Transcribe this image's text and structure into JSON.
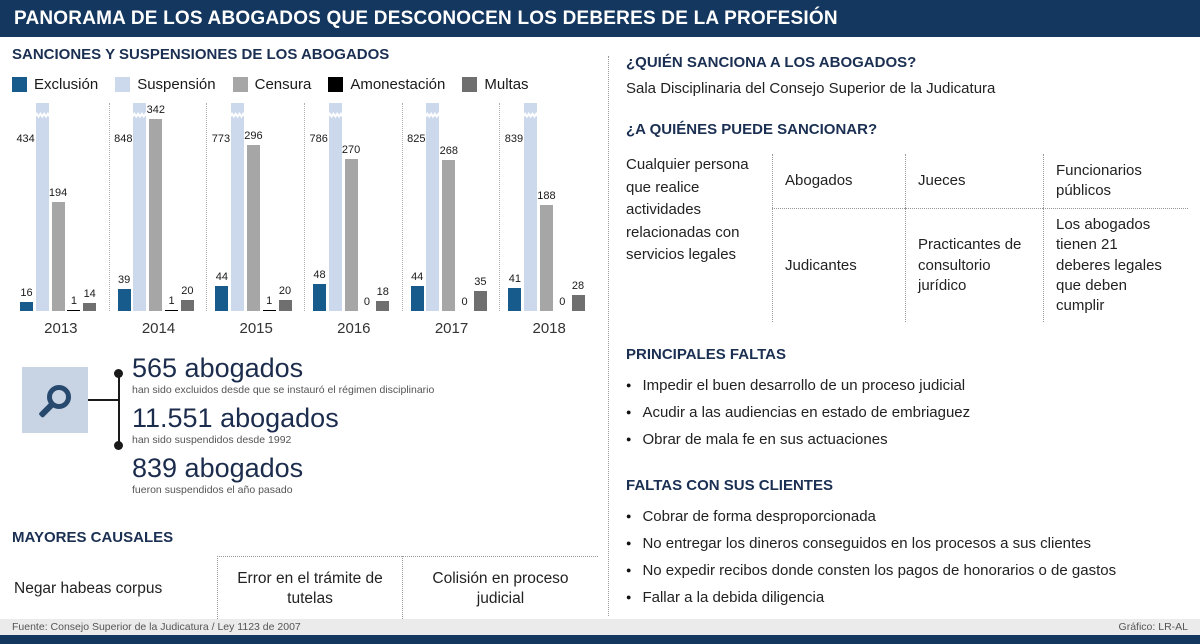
{
  "header": {
    "title": "PANORAMA DE LOS ABOGADOS QUE DESCONOCEN LOS DEBERES DE LA PROFESIÓN"
  },
  "chart": {
    "section_title": "SANCIONES Y SUSPENSIONES DE LOS ABOGADOS",
    "chart_data": {
      "type": "bar",
      "categories": [
        "2013",
        "2014",
        "2015",
        "2016",
        "2017",
        "2018"
      ],
      "series": [
        {
          "name": "Exclusión",
          "color": "#175a8c",
          "values": [
            16,
            39,
            44,
            48,
            44,
            41
          ]
        },
        {
          "name": "Suspensión",
          "color": "#ccd9ec",
          "values": [
            434,
            848,
            773,
            786,
            825,
            839
          ],
          "broken_axis": true
        },
        {
          "name": "Censura",
          "color": "#a6a6a6",
          "values": [
            194,
            342,
            296,
            270,
            268,
            188
          ]
        },
        {
          "name": "Amonestación",
          "color": "#000000",
          "values": [
            1,
            1,
            1,
            0,
            0,
            0
          ]
        },
        {
          "name": "Multas",
          "color": "#6f6f6f",
          "values": [
            14,
            20,
            20,
            18,
            35,
            28
          ]
        }
      ],
      "ylim": [
        0,
        370
      ],
      "legend_position": "top",
      "grid": false
    }
  },
  "stats": {
    "items": [
      {
        "value": "565 abogados",
        "desc": "han sido excluidos desde que se instauró el régimen disciplinario"
      },
      {
        "value": "11.551 abogados",
        "desc": "han sido suspendidos desde 1992"
      },
      {
        "value": "839 abogados",
        "desc": "fueron suspendidos el año pasado"
      }
    ]
  },
  "causales": {
    "title": "MAYORES CAUSALES",
    "items": [
      "Negar habeas corpus",
      "Error en el trámite de tutelas",
      "Colisión en proceso judicial"
    ]
  },
  "sanciona": {
    "title": "¿QUIÉN SANCIONA A LOS ABOGADOS?",
    "text": "Sala Disciplinaria del Consejo Superior de la Judicatura"
  },
  "quienes": {
    "title": "¿A QUIÉNES PUEDE SANCIONAR?",
    "intro": "Cualquier persona que realice actividades relacionadas con servicios legales",
    "row1": [
      "Abogados",
      "Jueces",
      "Funcionarios públicos"
    ],
    "row2": [
      "Judicantes",
      "Practicantes de consultorio jurídico",
      "Los abogados tienen 21 deberes legales que deben cumplir"
    ]
  },
  "faltas": {
    "title": "PRINCIPALES FALTAS",
    "items": [
      "Impedir el buen desarrollo de un proceso judicial",
      "Acudir a las audiencias en estado de embriaguez",
      "Obrar de mala fe en sus actuaciones"
    ]
  },
  "clientes": {
    "title": "FALTAS CON SUS CLIENTES",
    "items": [
      "Cobrar de forma desproporcionada",
      "No entregar los dineros conseguidos en los procesos a sus clientes",
      "No expedir recibos donde consten los pagos de honorarios o de gastos",
      "Fallar a la debida diligencia"
    ]
  },
  "footer": {
    "source": "Fuente: Consejo Superior de la Judicatura / Ley 1123 de 2007",
    "credit": "Gráfico: LR-AL"
  }
}
